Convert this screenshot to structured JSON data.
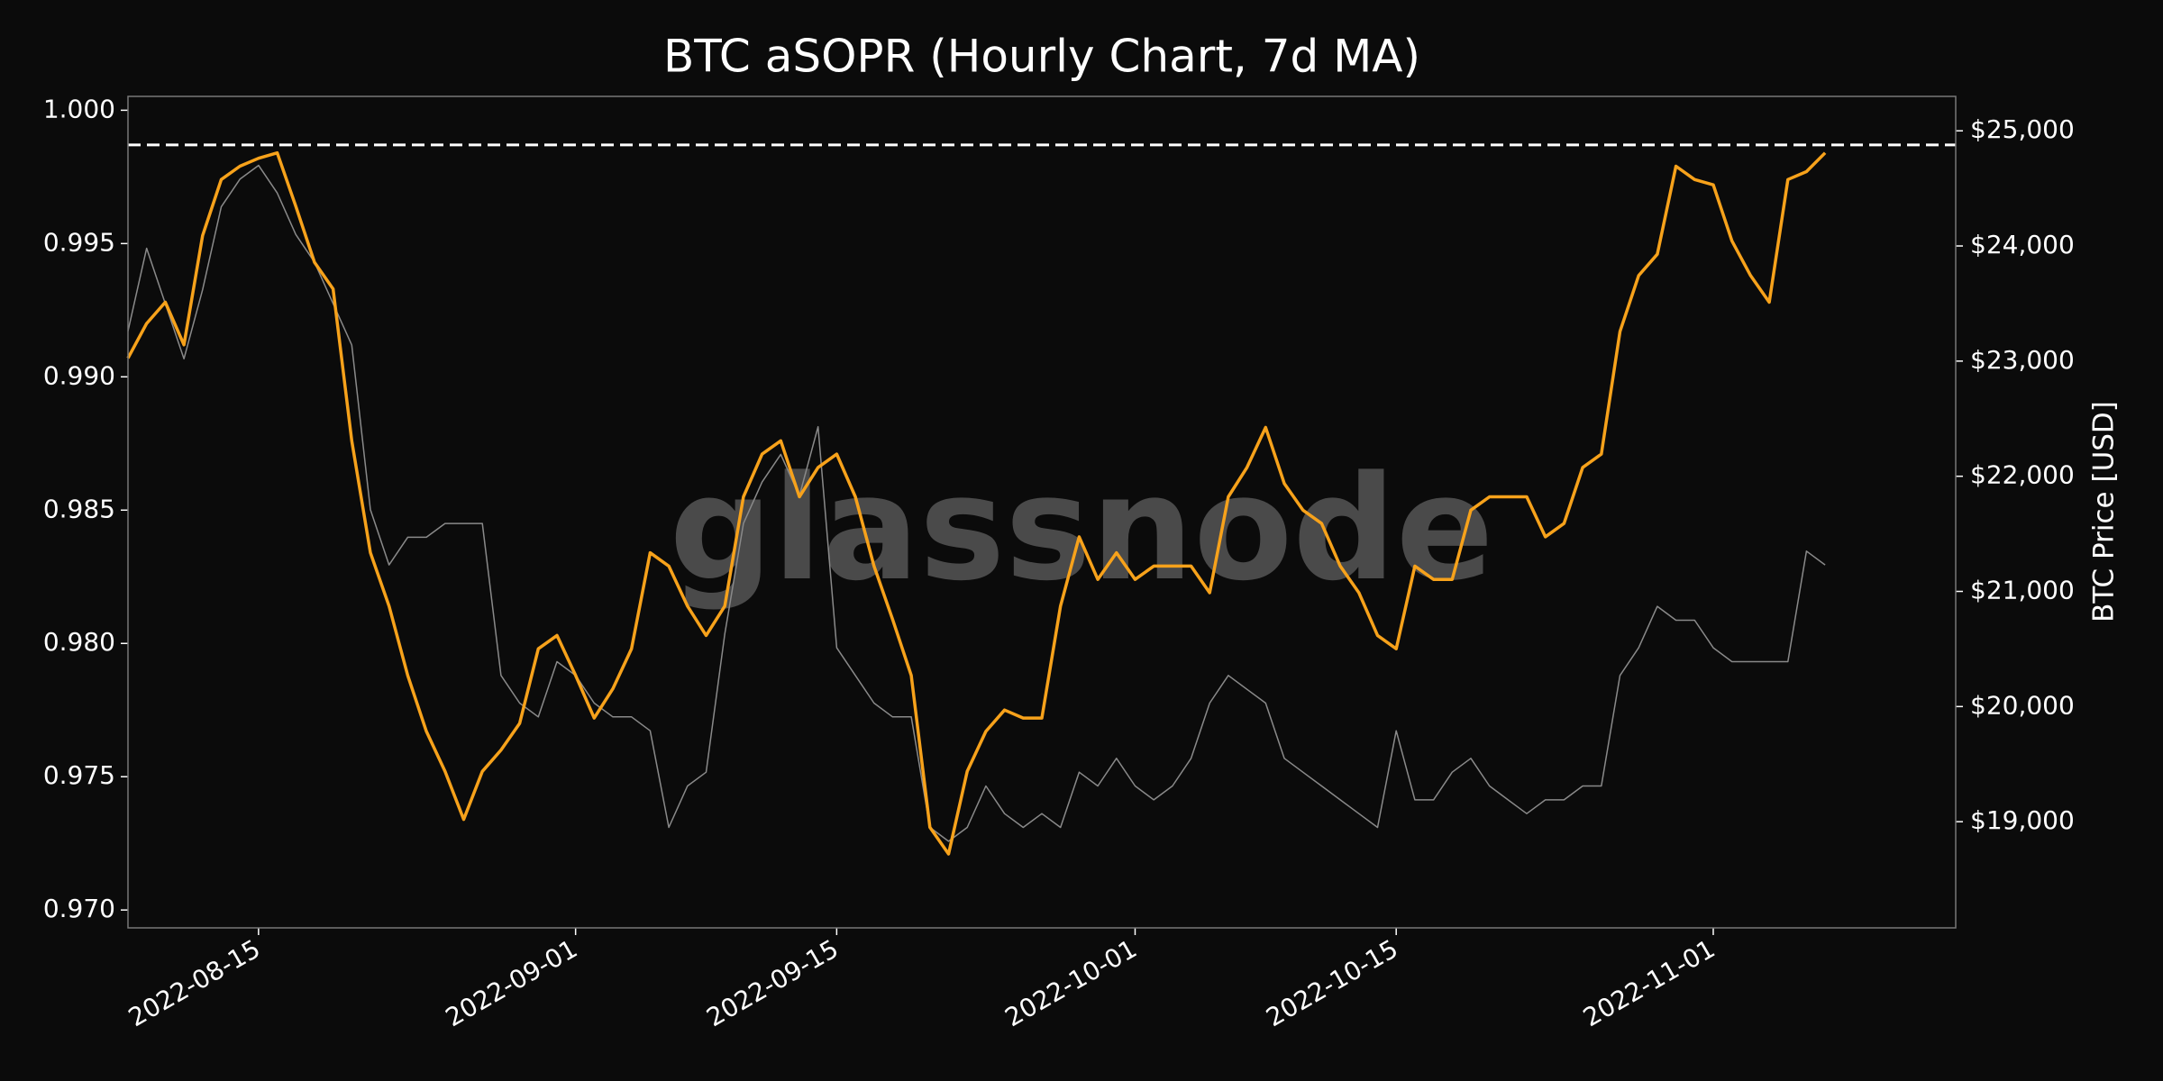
{
  "chart_data": {
    "type": "line",
    "title": "BTC aSOPR (Hourly Chart, 7d MA)",
    "y2_label": "BTC Price [USD]",
    "watermark": "glassnode",
    "x": [
      "2022-08-08",
      "2022-08-09",
      "2022-08-10",
      "2022-08-11",
      "2022-08-12",
      "2022-08-13",
      "2022-08-14",
      "2022-08-15",
      "2022-08-16",
      "2022-08-17",
      "2022-08-18",
      "2022-08-19",
      "2022-08-20",
      "2022-08-21",
      "2022-08-22",
      "2022-08-23",
      "2022-08-24",
      "2022-08-25",
      "2022-08-26",
      "2022-08-27",
      "2022-08-28",
      "2022-08-29",
      "2022-08-30",
      "2022-08-31",
      "2022-09-01",
      "2022-09-02",
      "2022-09-03",
      "2022-09-04",
      "2022-09-05",
      "2022-09-06",
      "2022-09-07",
      "2022-09-08",
      "2022-09-09",
      "2022-09-10",
      "2022-09-11",
      "2022-09-12",
      "2022-09-13",
      "2022-09-14",
      "2022-09-15",
      "2022-09-16",
      "2022-09-17",
      "2022-09-18",
      "2022-09-19",
      "2022-09-20",
      "2022-09-21",
      "2022-09-22",
      "2022-09-23",
      "2022-09-24",
      "2022-09-25",
      "2022-09-26",
      "2022-09-27",
      "2022-09-28",
      "2022-09-29",
      "2022-09-30",
      "2022-10-01",
      "2022-10-02",
      "2022-10-03",
      "2022-10-04",
      "2022-10-05",
      "2022-10-06",
      "2022-10-07",
      "2022-10-08",
      "2022-10-09",
      "2022-10-10",
      "2022-10-11",
      "2022-10-12",
      "2022-10-13",
      "2022-10-14",
      "2022-10-15",
      "2022-10-16",
      "2022-10-17",
      "2022-10-18",
      "2022-10-19",
      "2022-10-20",
      "2022-10-21",
      "2022-10-22",
      "2022-10-23",
      "2022-10-24",
      "2022-10-25",
      "2022-10-26",
      "2022-10-27",
      "2022-10-28",
      "2022-10-29",
      "2022-10-30",
      "2022-10-31",
      "2022-11-01",
      "2022-11-02",
      "2022-11-03",
      "2022-11-04",
      "2022-11-05",
      "2022-11-06",
      "2022-11-07"
    ],
    "series": [
      {
        "name": "BTC Price",
        "color": "#8a8a8a",
        "axis": "y2",
        "values": [
          23260,
          23980,
          23500,
          23020,
          23620,
          24340,
          24580,
          24700,
          24460,
          24100,
          23860,
          23500,
          23140,
          21710,
          21230,
          21470,
          21470,
          21590,
          21590,
          21590,
          20270,
          20030,
          19910,
          20390,
          20270,
          20030,
          19910,
          19910,
          19790,
          18950,
          19310,
          19430,
          20630,
          21590,
          21950,
          22190,
          21830,
          22430,
          20510,
          20270,
          20030,
          19910,
          19910,
          18950,
          18830,
          18950,
          19310,
          19070,
          18950,
          19070,
          18950,
          19430,
          19310,
          19550,
          19310,
          19190,
          19310,
          19550,
          20030,
          20270,
          20150,
          20030,
          19550,
          19430,
          19310,
          19190,
          19070,
          18950,
          19790,
          19190,
          19190,
          19430,
          19550,
          19310,
          19190,
          19070,
          19190,
          19190,
          19310,
          19310,
          20270,
          20510,
          20870,
          20750,
          20750,
          20510,
          20390,
          20390,
          20390,
          20390,
          21350,
          21230
        ]
      },
      {
        "name": "aSOPR",
        "color": "#f7a21b",
        "values": [
          0.9907,
          0.992,
          0.9928,
          0.9912,
          0.9953,
          0.9974,
          0.9979,
          0.9982,
          0.9984,
          0.9964,
          0.9943,
          0.9933,
          0.9876,
          0.9834,
          0.9814,
          0.9788,
          0.9767,
          0.9752,
          0.9734,
          0.9752,
          0.976,
          0.977,
          0.9798,
          0.9803,
          0.9788,
          0.9772,
          0.9783,
          0.9798,
          0.9834,
          0.9829,
          0.9814,
          0.9803,
          0.9814,
          0.9855,
          0.9871,
          0.9876,
          0.9855,
          0.9866,
          0.9871,
          0.9855,
          0.9829,
          0.9809,
          0.9788,
          0.9731,
          0.9721,
          0.9752,
          0.9767,
          0.9775,
          0.9772,
          0.9772,
          0.9814,
          0.984,
          0.9824,
          0.9834,
          0.9824,
          0.9829,
          0.9829,
          0.9829,
          0.9819,
          0.9855,
          0.9866,
          0.9881,
          0.986,
          0.985,
          0.9845,
          0.9829,
          0.9819,
          0.9803,
          0.9798,
          0.9829,
          0.9824,
          0.9824,
          0.985,
          0.9855,
          0.9855,
          0.9855,
          0.984,
          0.9845,
          0.9866,
          0.9871,
          0.9917,
          0.9938,
          0.9946,
          0.9979,
          0.9974,
          0.9972,
          0.9951,
          0.9938,
          0.9928,
          0.9974,
          0.9977,
          0.9984
        ]
      }
    ],
    "reference_line": 0.9987,
    "xlim": [
      "2022-08-08",
      "2022-11-14"
    ],
    "xticks": [
      "2022-08-15",
      "2022-09-01",
      "2022-09-15",
      "2022-10-01",
      "2022-10-15",
      "2022-11-01"
    ],
    "ylim": [
      0.96933,
      1.00052
    ],
    "yticks": [
      {
        "value": 0.97,
        "label": "0.970"
      },
      0.975,
      {
        "value": 0.98,
        "label": "0.980"
      },
      0.985,
      {
        "value": 0.99,
        "label": "0.990"
      },
      0.995,
      {
        "value": 1.0,
        "label": "1.000"
      }
    ],
    "y2lim": [
      18078,
      25299
    ],
    "y2ticks": [
      {
        "value": 19000,
        "label": "$19,000"
      },
      {
        "value": 20000,
        "label": "$20,000"
      },
      {
        "value": 21000,
        "label": "$21,000"
      },
      {
        "value": 22000,
        "label": "$22,000"
      },
      {
        "value": 23000,
        "label": "$23,000"
      },
      {
        "value": 24000,
        "label": "$24,000"
      },
      {
        "value": 25000,
        "label": "$25,000"
      }
    ]
  }
}
